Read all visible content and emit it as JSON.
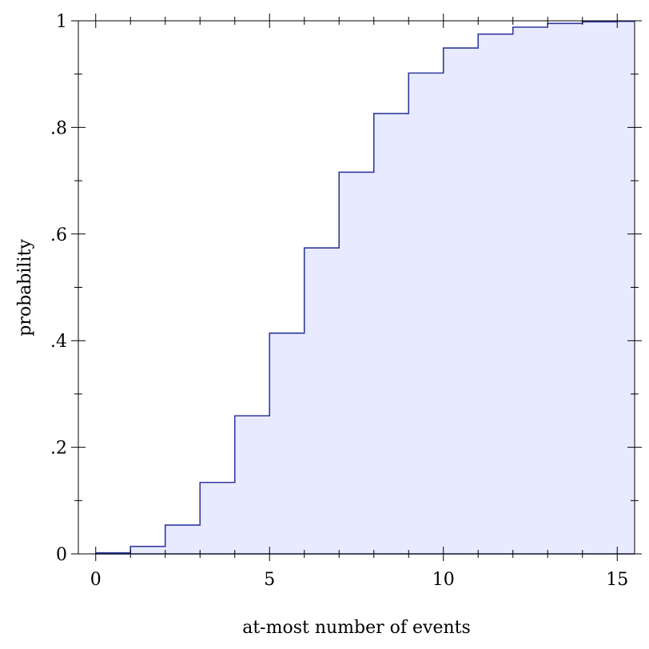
{
  "chart_data": {
    "type": "area",
    "xlabel": "at-most number of events",
    "ylabel": "probability",
    "xlim": [
      -0.5,
      15.5
    ],
    "ylim": [
      0,
      1
    ],
    "x_ticks": [
      0,
      5,
      10,
      15
    ],
    "x_tick_labels": [
      "0",
      "5",
      "10",
      "15"
    ],
    "y_ticks": [
      0,
      0.2,
      0.4,
      0.6,
      0.8,
      1
    ],
    "y_tick_labels": [
      "0",
      ".2",
      ".4",
      ".6",
      ".8",
      "1"
    ],
    "grid": false,
    "step": "post",
    "series": [
      {
        "x": [
          0,
          1,
          2,
          3,
          4,
          5,
          6,
          7,
          8,
          9,
          10,
          11,
          12,
          13,
          14,
          15
        ],
        "values": [
          0.002,
          0.014,
          0.054,
          0.134,
          0.259,
          0.414,
          0.574,
          0.716,
          0.826,
          0.902,
          0.949,
          0.975,
          0.988,
          0.995,
          0.998,
          0.999
        ]
      }
    ],
    "colors": {
      "line": "#2f3a9e",
      "fill": "#e8ebff"
    }
  }
}
